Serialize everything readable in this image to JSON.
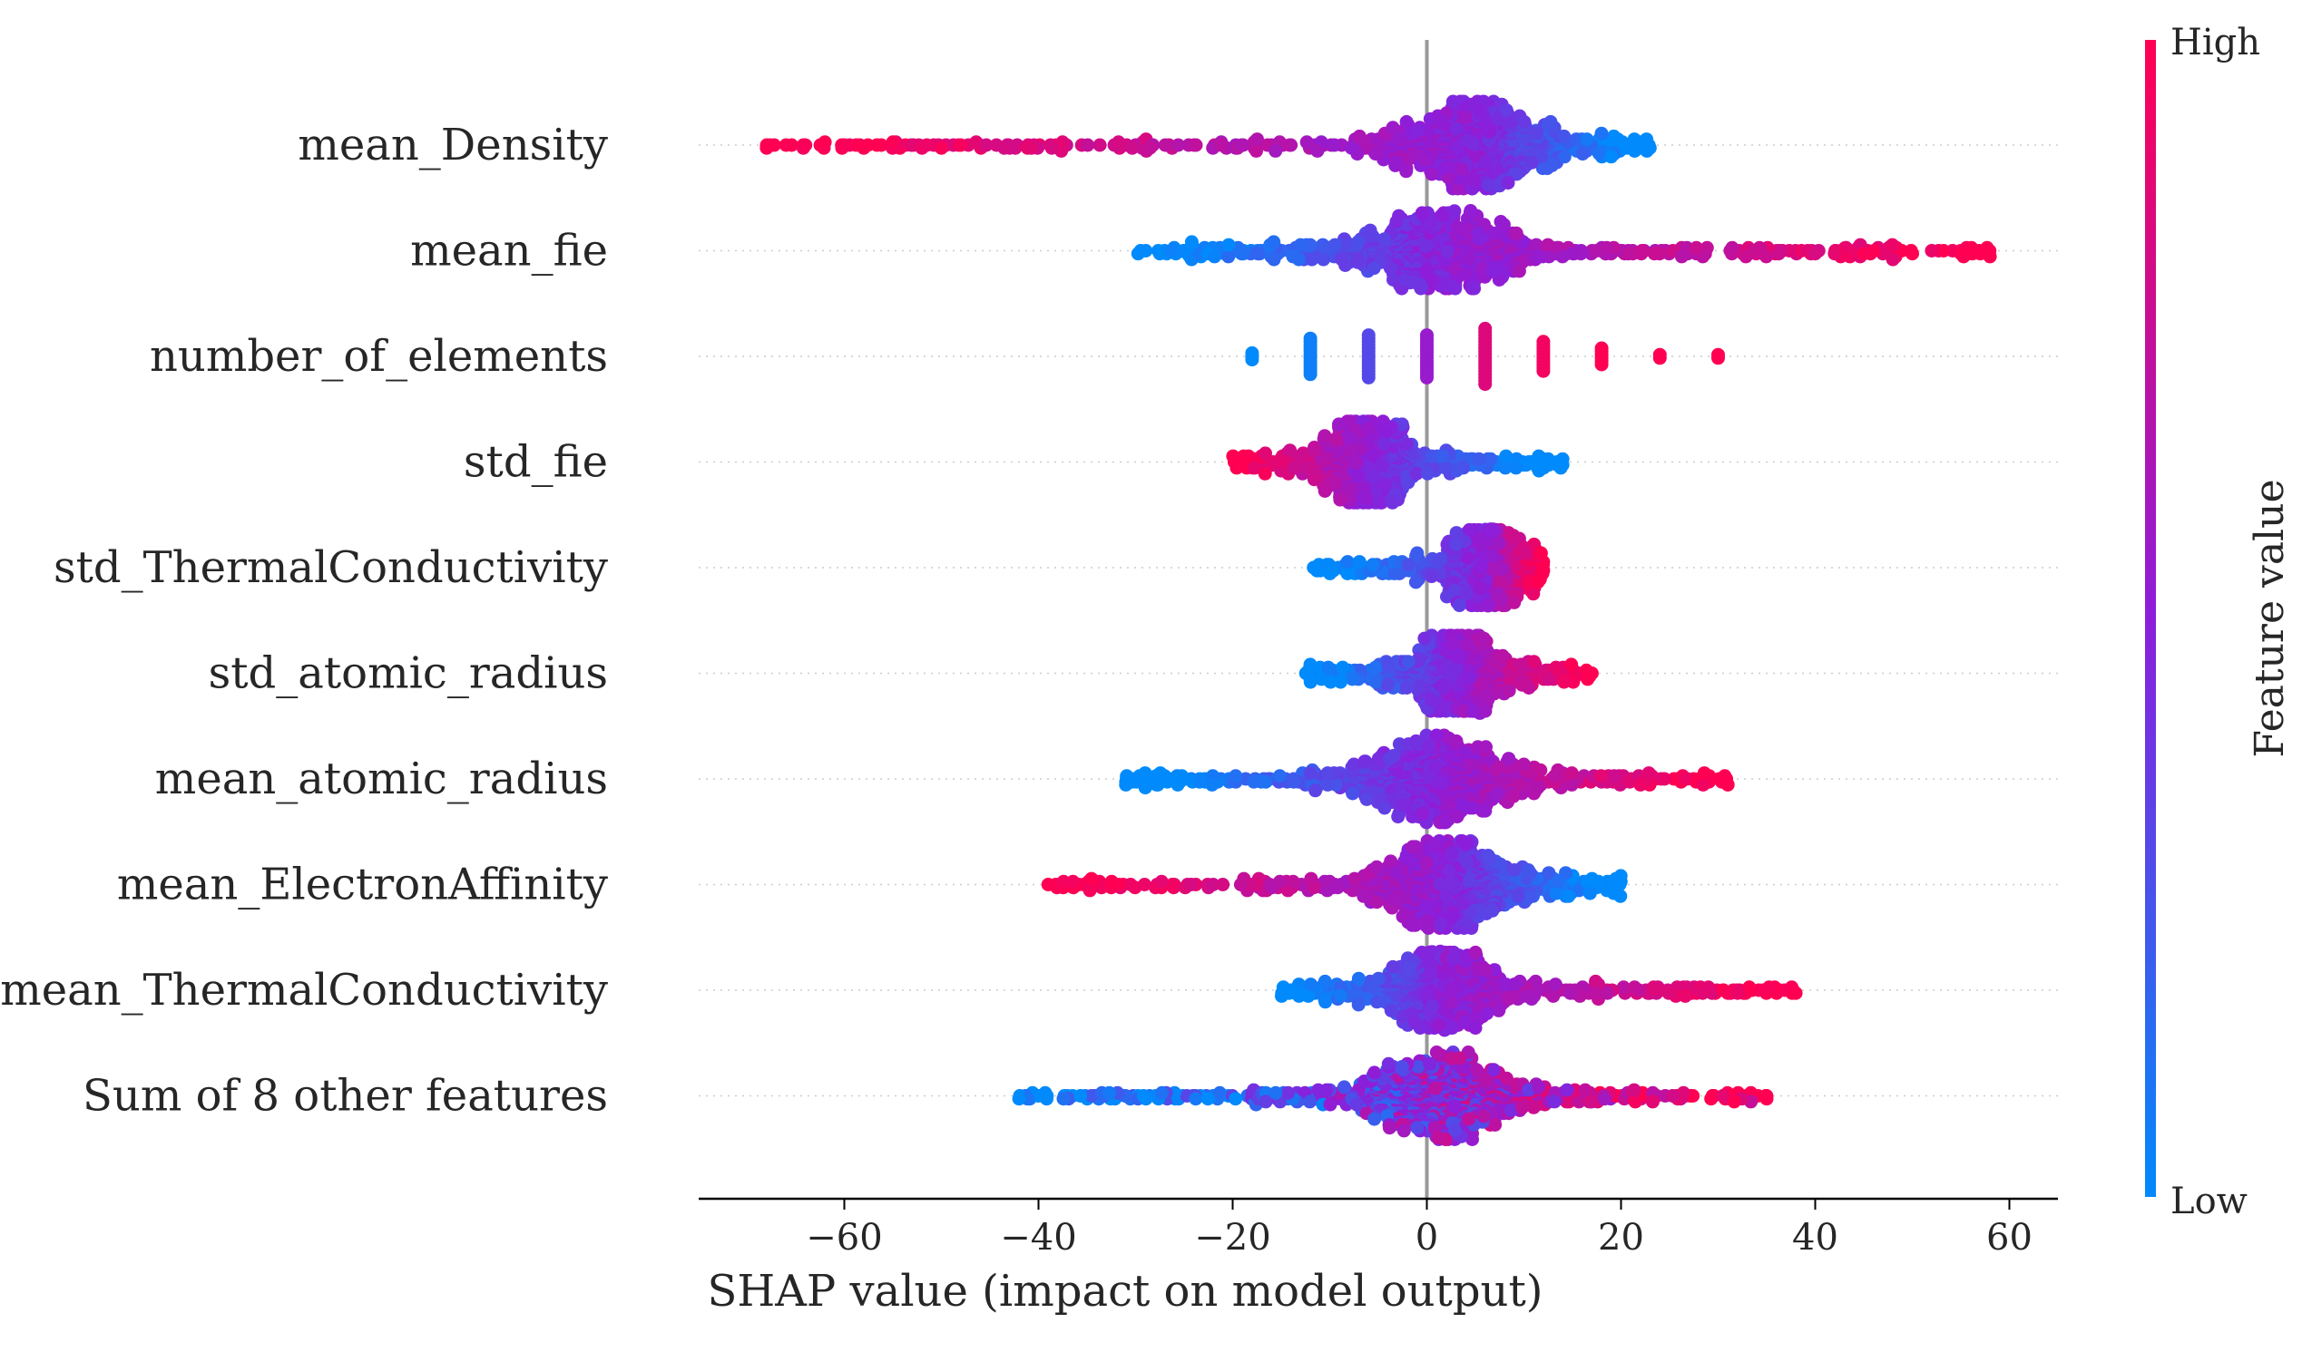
{
  "chart_data": {
    "type": "scatter",
    "subtype": "shap-beeswarm",
    "xlabel": "SHAP value (impact on model output)",
    "xlim": [
      -75,
      65
    ],
    "xticks": [
      -60,
      -40,
      -20,
      0,
      20,
      40,
      60
    ],
    "xtick_labels": [
      "−60",
      "−40",
      "−20",
      "0",
      "20",
      "40",
      "60"
    ],
    "colorbar": {
      "title": "Feature value",
      "high_label": "High",
      "low_label": "Low",
      "low_color": "#008afb",
      "mid_color": "#8c1edb",
      "high_color": "#ff0052"
    },
    "features": [
      {
        "name": "mean_Density",
        "label": "mean_Density",
        "min": -68,
        "max": 23,
        "center": 5,
        "spread": 4.5,
        "n": 900,
        "height": 48,
        "direction": -1,
        "isolated": [
          [
            -68,
            1
          ],
          [
            -66,
            1
          ],
          [
            -64,
            1
          ],
          [
            -62,
            1
          ],
          [
            -60,
            1
          ],
          [
            -58,
            1
          ],
          [
            -55,
            1
          ],
          [
            -52,
            1
          ],
          [
            -50,
            1
          ],
          [
            -48,
            1
          ]
        ]
      },
      {
        "name": "mean_fie",
        "label": "mean_fie",
        "min": -30,
        "max": 58,
        "center": 2,
        "spread": 5,
        "n": 900,
        "height": 44,
        "direction": 1,
        "isolated": [
          [
            40,
            1
          ],
          [
            42,
            1
          ],
          [
            45,
            1
          ],
          [
            48,
            1
          ],
          [
            50,
            1
          ],
          [
            52,
            1
          ],
          [
            55,
            1
          ],
          [
            57,
            1
          ],
          [
            58,
            1
          ]
        ]
      },
      {
        "name": "number_of_elements",
        "label": "number_of_elements",
        "discrete": [
          {
            "x": -18,
            "count": 3,
            "c": 0.0
          },
          {
            "x": -12,
            "count": 12,
            "c": 0.05
          },
          {
            "x": -6,
            "count": 14,
            "c": 0.3
          },
          {
            "x": 0,
            "count": 14,
            "c": 0.55
          },
          {
            "x": 6,
            "count": 18,
            "c": 0.85
          },
          {
            "x": 12,
            "count": 10,
            "c": 0.95
          },
          {
            "x": 18,
            "count": 6,
            "c": 1.0
          },
          {
            "x": 24,
            "count": 2,
            "c": 1.0
          },
          {
            "x": 30,
            "count": 2,
            "c": 1.0
          }
        ]
      },
      {
        "name": "std_fie",
        "label": "std_fie",
        "min": -20,
        "max": 14,
        "center": -6,
        "spread": 3,
        "n": 700,
        "height": 46,
        "direction": -1,
        "isolated": []
      },
      {
        "name": "std_ThermalConductivity",
        "label": "std_ThermalConductivity",
        "min": -12,
        "max": 12,
        "center": 6,
        "spread": 2.5,
        "n": 600,
        "height": 44,
        "direction": 1,
        "isolated": []
      },
      {
        "name": "std_atomic_radius",
        "label": "std_atomic_radius",
        "min": -13,
        "max": 17,
        "center": 3,
        "spread": 3,
        "n": 650,
        "height": 44,
        "direction": 1,
        "isolated": [
          [
            17,
            1
          ]
        ]
      },
      {
        "name": "mean_atomic_radius",
        "label": "mean_atomic_radius",
        "min": -31,
        "max": 31,
        "center": 1,
        "spread": 5,
        "n": 850,
        "height": 48,
        "direction": 1,
        "isolated": [
          [
            -31,
            0
          ],
          [
            -29,
            0
          ],
          [
            -27,
            0
          ],
          [
            22,
            1
          ],
          [
            31,
            1
          ]
        ]
      },
      {
        "name": "mean_ElectronAffinity",
        "label": "mean_ElectronAffinity",
        "min": -39,
        "max": 20,
        "center": 2,
        "spread": 4.5,
        "n": 850,
        "height": 48,
        "direction": -1,
        "isolated": [
          [
            -39,
            1
          ]
        ]
      },
      {
        "name": "mean_ThermalConductivity",
        "label": "mean_ThermalConductivity",
        "min": -15,
        "max": 38,
        "center": 2,
        "spread": 3.5,
        "n": 750,
        "height": 44,
        "direction": 1,
        "isolated": [
          [
            29,
            1
          ],
          [
            32,
            1
          ],
          [
            38,
            1
          ]
        ]
      },
      {
        "name": "sum_other_features",
        "label": "Sum of 8 other features",
        "min": -42,
        "max": 35,
        "center": 2,
        "spread": 5,
        "n": 900,
        "height": 48,
        "direction": 1,
        "mixed": true,
        "isolated": [
          [
            -42,
            0
          ]
        ]
      }
    ]
  }
}
